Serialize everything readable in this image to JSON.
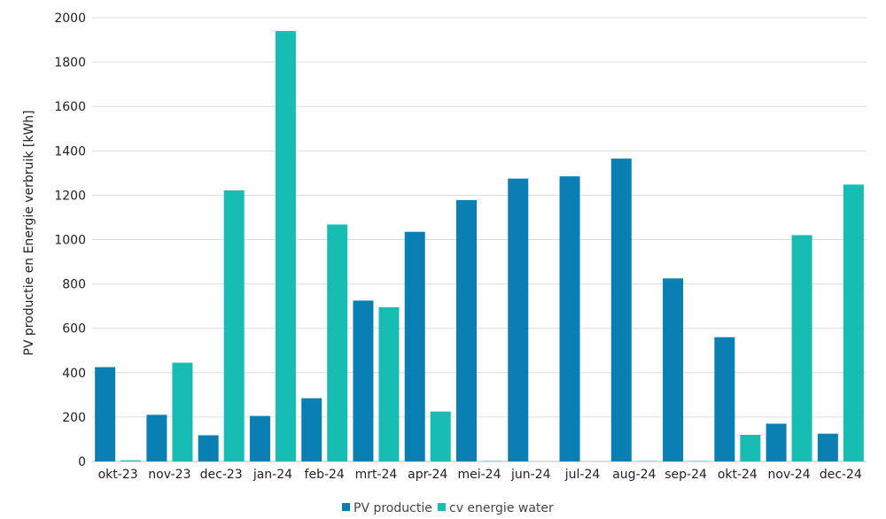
{
  "chart_data": {
    "type": "bar",
    "title": "",
    "xlabel": "",
    "ylabel": "PV productie en Energie verbruik [kWh]",
    "ylim": [
      0,
      2000
    ],
    "yticks": [
      0,
      200,
      400,
      600,
      800,
      1000,
      1200,
      1400,
      1600,
      1800,
      2000
    ],
    "grid": true,
    "legend": "bottom-center",
    "categories": [
      "okt-23",
      "nov-23",
      "dec-23",
      "jan-24",
      "feb-24",
      "mrt-24",
      "apr-24",
      "mei-24",
      "jun-24",
      "jul-24",
      "aug-24",
      "sep-24",
      "okt-24",
      "nov-24",
      "dec-24"
    ],
    "series": [
      {
        "name": "PV productie",
        "color": "#0a7fb3",
        "values": [
          425,
          210,
          118,
          205,
          285,
          725,
          1035,
          1178,
          1275,
          1285,
          1365,
          825,
          560,
          170,
          125
        ]
      },
      {
        "name": "cv energie water",
        "color": "#17bdb2",
        "values": [
          5,
          445,
          1222,
          1940,
          1068,
          695,
          225,
          2,
          0,
          0,
          2,
          2,
          120,
          1020,
          1248
        ]
      }
    ]
  }
}
